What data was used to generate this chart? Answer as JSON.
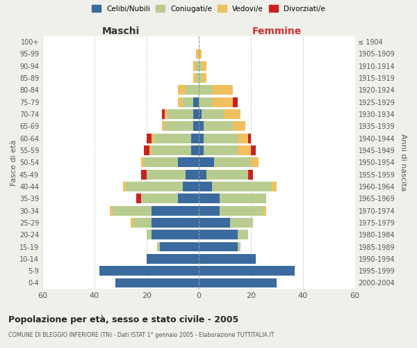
{
  "age_groups": [
    "0-4",
    "5-9",
    "10-14",
    "15-19",
    "20-24",
    "25-29",
    "30-34",
    "35-39",
    "40-44",
    "45-49",
    "50-54",
    "55-59",
    "60-64",
    "65-69",
    "70-74",
    "75-79",
    "80-84",
    "85-89",
    "90-94",
    "95-99",
    "100+"
  ],
  "birth_years": [
    "2000-2004",
    "1995-1999",
    "1990-1994",
    "1985-1989",
    "1980-1984",
    "1975-1979",
    "1970-1974",
    "1965-1969",
    "1960-1964",
    "1955-1959",
    "1950-1954",
    "1945-1949",
    "1940-1944",
    "1935-1939",
    "1930-1934",
    "1925-1929",
    "1920-1924",
    "1915-1919",
    "1910-1914",
    "1905-1909",
    "≤ 1904"
  ],
  "maschi": {
    "celibi": [
      32,
      38,
      20,
      15,
      18,
      18,
      18,
      8,
      6,
      5,
      8,
      3,
      3,
      2,
      2,
      2,
      0,
      0,
      0,
      0,
      0
    ],
    "coniugati": [
      0,
      0,
      0,
      1,
      2,
      7,
      15,
      14,
      22,
      15,
      13,
      15,
      14,
      11,
      10,
      4,
      5,
      1,
      1,
      0,
      0
    ],
    "vedovi": [
      0,
      0,
      0,
      0,
      0,
      1,
      1,
      0,
      1,
      0,
      1,
      1,
      1,
      1,
      1,
      2,
      3,
      1,
      1,
      1,
      0
    ],
    "divorziati": [
      0,
      0,
      0,
      0,
      0,
      0,
      0,
      2,
      0,
      2,
      0,
      2,
      2,
      0,
      1,
      0,
      0,
      0,
      0,
      0,
      0
    ]
  },
  "femmine": {
    "nubili": [
      30,
      37,
      22,
      15,
      15,
      12,
      8,
      8,
      5,
      3,
      6,
      2,
      2,
      2,
      1,
      0,
      0,
      0,
      0,
      0,
      0
    ],
    "coniugate": [
      0,
      0,
      0,
      1,
      4,
      9,
      17,
      18,
      23,
      16,
      14,
      13,
      13,
      11,
      9,
      5,
      5,
      1,
      1,
      0,
      0
    ],
    "vedove": [
      0,
      0,
      0,
      0,
      0,
      0,
      1,
      0,
      2,
      0,
      3,
      5,
      4,
      5,
      6,
      8,
      8,
      2,
      2,
      1,
      0
    ],
    "divorziate": [
      0,
      0,
      0,
      0,
      0,
      0,
      0,
      0,
      0,
      2,
      0,
      2,
      1,
      0,
      0,
      2,
      0,
      0,
      0,
      0,
      0
    ]
  },
  "colors": {
    "celibi": "#3a6a9e",
    "coniugati": "#b8cc90",
    "vedovi": "#f0c060",
    "divorziati": "#cc2020"
  },
  "xlim": 60,
  "title": "Popolazione per età, sesso e stato civile - 2005",
  "subtitle": "COMUNE DI BLEGGIO INFERIORE (TN) - Dati ISTAT 1° gennaio 2005 - Elaborazione TUTTITALIA.IT",
  "ylabel_left": "Fasce di età",
  "ylabel_right": "Anni di nascita",
  "xlabel_left": "Maschi",
  "xlabel_right": "Femmine",
  "bg_color": "#f0f0eb",
  "plot_bg_color": "#ffffff",
  "maschi_label_color": "#333333",
  "femmine_label_color": "#cc3333"
}
